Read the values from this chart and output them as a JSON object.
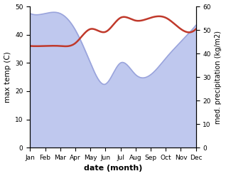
{
  "months": [
    "Jan",
    "Feb",
    "Mar",
    "Apr",
    "May",
    "Jun",
    "Jul",
    "Aug",
    "Sep",
    "Oct",
    "Nov",
    "Dec"
  ],
  "temp_max": [
    36,
    36,
    36,
    37,
    42,
    41,
    46,
    45,
    46,
    46,
    42,
    42
  ],
  "rainfall": [
    57,
    57,
    57,
    50,
    36,
    27,
    36,
    31,
    31,
    38,
    45,
    52
  ],
  "temp_color": "#c0392b",
  "rainfall_fill_color": "#bfc8ee",
  "rainfall_line_color": "#9aa4dc",
  "xlabel": "date (month)",
  "ylabel_left": "max temp (C)",
  "ylabel_right": "med. precipitation (kg/m2)",
  "ylim_left": [
    0,
    50
  ],
  "ylim_right": [
    0,
    60
  ],
  "yticks_left": [
    0,
    10,
    20,
    30,
    40,
    50
  ],
  "yticks_right": [
    0,
    10,
    20,
    30,
    40,
    50,
    60
  ],
  "background_color": "#ffffff",
  "temp_linewidth": 1.8,
  "rainfall_linewidth": 1.2
}
